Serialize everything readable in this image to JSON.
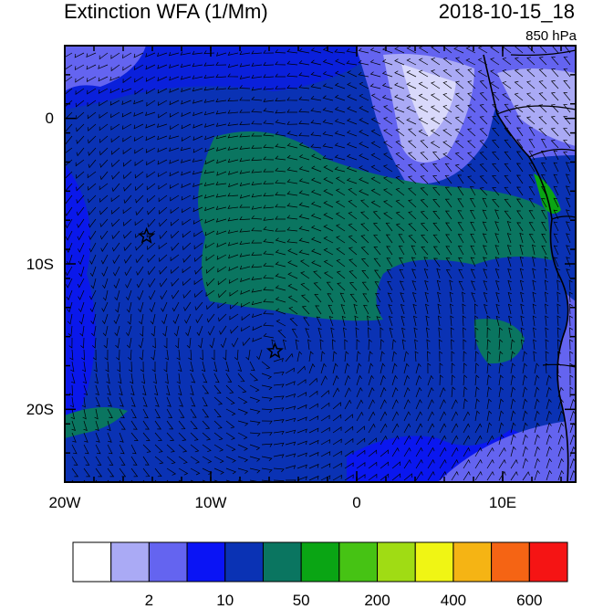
{
  "header": {
    "title": "Extinction WFA (1/Mm)",
    "datetime": "2018-10-15_18",
    "level": "850 hPa"
  },
  "axes": {
    "x_ticks": [
      {
        "label": "20W",
        "lon": -20
      },
      {
        "label": "10W",
        "lon": -10
      },
      {
        "label": "0",
        "lon": 0
      },
      {
        "label": "10E",
        "lon": 10
      }
    ],
    "y_ticks": [
      {
        "label": "0",
        "lat": 0
      },
      {
        "label": "10S",
        "lat": -10
      },
      {
        "label": "20S",
        "lat": -20
      }
    ],
    "lon_range": [
      -20,
      15
    ],
    "lat_range": [
      -25,
      5
    ]
  },
  "markers": [
    {
      "name": "star-1",
      "lon": -14.4,
      "lat": -8.1
    },
    {
      "name": "star-2",
      "lon": -5.6,
      "lat": -16.0
    }
  ],
  "colorbar": {
    "colors": [
      "#ffffff",
      "#aaaaf5",
      "#6464f0",
      "#0a14f5",
      "#0a32b4",
      "#0a7560",
      "#0aa514",
      "#46c314",
      "#a0dc14",
      "#f0f514",
      "#f5b414",
      "#f56414",
      "#f51414"
    ],
    "labels": [
      {
        "text": "2",
        "after_bin": 1
      },
      {
        "text": "10",
        "after_bin": 3
      },
      {
        "text": "50",
        "after_bin": 5
      },
      {
        "text": "200",
        "after_bin": 7
      },
      {
        "text": "400",
        "after_bin": 9
      },
      {
        "text": "600",
        "after_bin": 11
      }
    ]
  },
  "map_colors": {
    "ocean_blue": "#0a32b4",
    "ocean_mid": "#0a14f5",
    "plume_green": "#0a7560",
    "light": "#aaaaf5",
    "medium": "#6464f0",
    "land_green": "#0aa514"
  }
}
